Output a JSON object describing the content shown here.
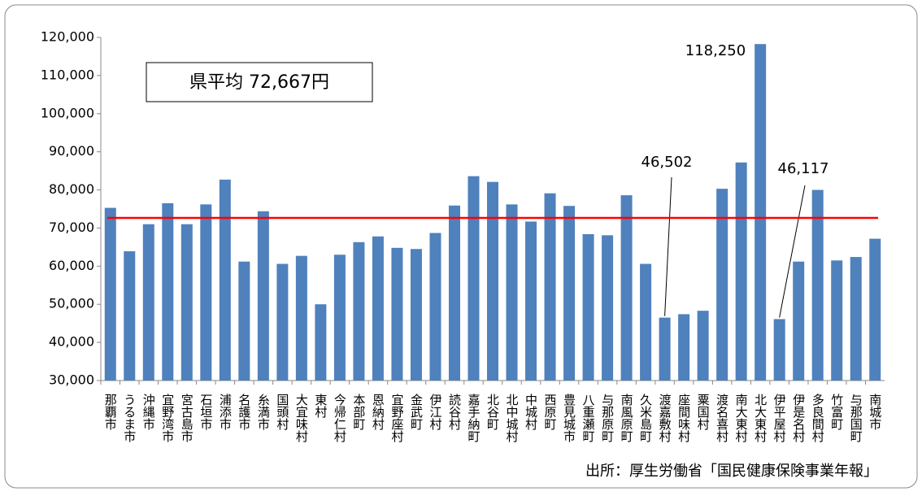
{
  "chart_data": {
    "type": "bar",
    "categories": [
      "那覇市",
      "うるま市",
      "沖縄市",
      "宜野湾市",
      "宮古島市",
      "石垣市",
      "浦添市",
      "名護市",
      "糸満市",
      "国頭村",
      "大宜味村",
      "東村",
      "今帰仁村",
      "本部町",
      "恩納村",
      "宜野座村",
      "金武町",
      "伊江村",
      "読谷村",
      "嘉手納町",
      "北谷町",
      "北中城村",
      "中城村",
      "西原町",
      "豊見城市",
      "八重瀬町",
      "与那原町",
      "南風原町",
      "久米島町",
      "渡嘉敷村",
      "座間味村",
      "粟国村",
      "渡名喜村",
      "南大東村",
      "北大東村",
      "伊平屋村",
      "伊是名村",
      "多良間村",
      "竹富町",
      "与那国町",
      "南城市"
    ],
    "values": [
      75300,
      63900,
      71000,
      76500,
      71000,
      76200,
      82700,
      61200,
      74400,
      60600,
      62700,
      50000,
      63000,
      66300,
      67800,
      64800,
      64500,
      68700,
      75900,
      83600,
      82100,
      76200,
      71700,
      79100,
      75800,
      68400,
      68100,
      78600,
      60600,
      46502,
      47400,
      48300,
      80300,
      87200,
      118250,
      46117,
      61200,
      80000,
      61500,
      62400,
      67200
    ],
    "value_labels": [
      null,
      null,
      null,
      null,
      null,
      null,
      null,
      null,
      null,
      null,
      null,
      null,
      null,
      null,
      null,
      null,
      null,
      null,
      null,
      null,
      null,
      null,
      null,
      null,
      null,
      null,
      null,
      null,
      null,
      "46,502",
      null,
      null,
      null,
      null,
      "118,250",
      "46,117",
      null,
      null,
      null,
      null,
      null
    ],
    "color": "#4f81bd",
    "ylim": [
      30000,
      120000
    ],
    "yticks": [
      {
        "value": 30000,
        "label": "30,000"
      },
      {
        "value": 40000,
        "label": "40,000"
      },
      {
        "value": 50000,
        "label": "50,000"
      },
      {
        "value": 60000,
        "label": "60,000"
      },
      {
        "value": 70000,
        "label": "70,000"
      },
      {
        "value": 80000,
        "label": "80,000"
      },
      {
        "value": 90000,
        "label": "90,000"
      },
      {
        "value": 100000,
        "label": "100,000"
      },
      {
        "value": 110000,
        "label": "110,000"
      },
      {
        "value": 120000,
        "label": "120,000"
      }
    ],
    "grid": false,
    "average": {
      "value": 72667,
      "label": "県平均 72,667円",
      "color": "#ff0000"
    },
    "source": "出所：厚生労働省「国民健康保険事業年報」"
  }
}
